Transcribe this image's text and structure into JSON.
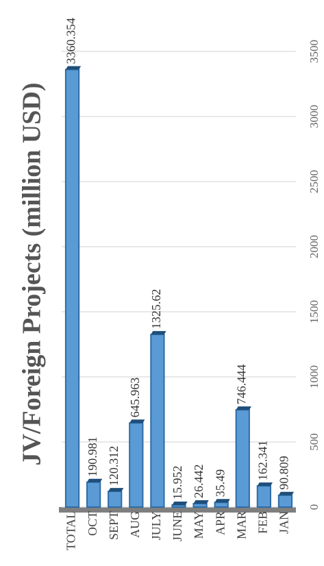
{
  "chart_data": {
    "type": "bar",
    "orientation": "horizontal",
    "title": "JV/Foreign Projects (million USD)",
    "categories": [
      "TOTAL",
      "OCT",
      "SEPT",
      "AUG",
      "JULY",
      "JUNE",
      "MAY",
      "APR",
      "MAR",
      "FEB",
      "JAN"
    ],
    "values": [
      3360.354,
      190.981,
      120.312,
      645.963,
      1325.62,
      15.952,
      26.442,
      35.49,
      746.444,
      162.341,
      90.809
    ],
    "color": "#5b9bd5",
    "xlim": [
      0,
      3500
    ],
    "xticks": [
      0,
      500,
      1000,
      1500,
      2000,
      2500,
      3000,
      3500
    ],
    "grid": true
  }
}
